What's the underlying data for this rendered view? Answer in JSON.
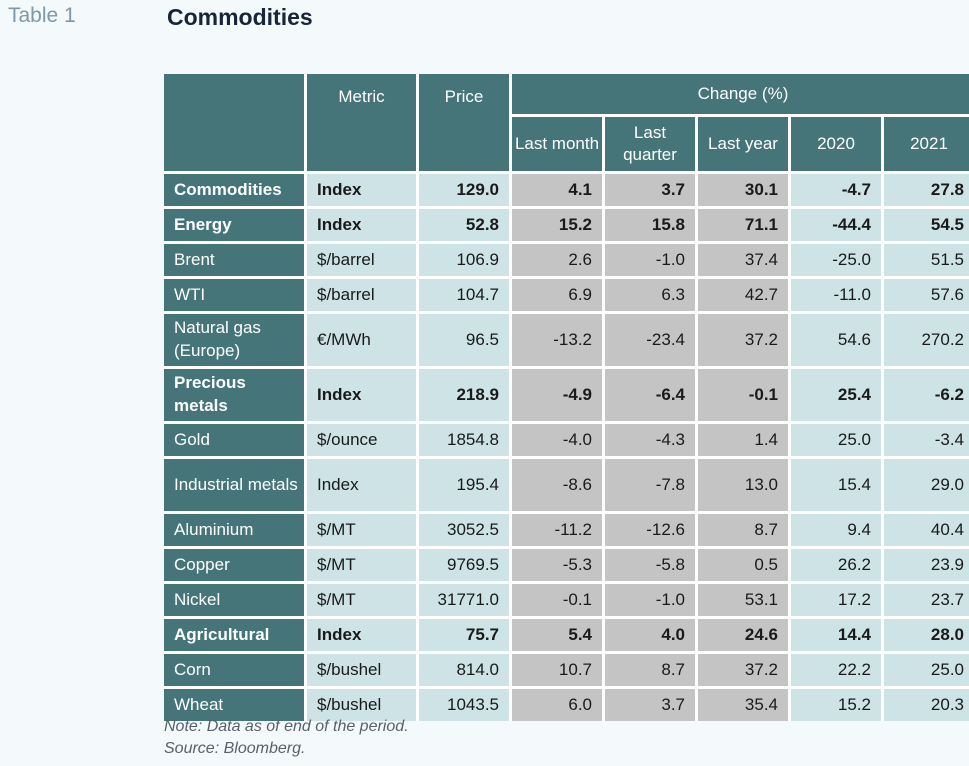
{
  "table_tag": "Table 1",
  "title": "Commodities",
  "headers": {
    "metric": "Metric",
    "price": "Price",
    "change": "Change (%)",
    "sub": [
      "Last month",
      "Last quarter",
      "Last year",
      "2020",
      "2021"
    ]
  },
  "rows": [
    {
      "name": "Commodities",
      "metric": "Index",
      "price": "129.0",
      "values": [
        "4.1",
        "3.7",
        "30.1",
        "-4.7",
        "27.8"
      ],
      "bold": true
    },
    {
      "name": "Energy",
      "metric": "Index",
      "price": "52.8",
      "values": [
        "15.2",
        "15.8",
        "71.1",
        "-44.4",
        "54.5"
      ],
      "bold": true
    },
    {
      "name": "Brent",
      "metric": "$/barrel",
      "price": "106.9",
      "values": [
        "2.6",
        "-1.0",
        "37.4",
        "-25.0",
        "51.5"
      ],
      "bold": false
    },
    {
      "name": "WTI",
      "metric": "$/barrel",
      "price": "104.7",
      "values": [
        "6.9",
        "6.3",
        "42.7",
        "-11.0",
        "57.6"
      ],
      "bold": false
    },
    {
      "name": "Natural gas (Europe)",
      "metric": "€/MWh",
      "price": "96.5",
      "values": [
        "-13.2",
        "-23.4",
        "37.2",
        "54.6",
        "270.2"
      ],
      "bold": false
    },
    {
      "name": "Precious metals",
      "metric": "Index",
      "price": "218.9",
      "values": [
        "-4.9",
        "-6.4",
        "-0.1",
        "25.4",
        "-6.2"
      ],
      "bold": true
    },
    {
      "name": "Gold",
      "metric": "$/ounce",
      "price": "1854.8",
      "values": [
        "-4.0",
        "-4.3",
        "1.4",
        "25.0",
        "-3.4"
      ],
      "bold": false
    },
    {
      "name": "Industrial metals",
      "metric": "Index",
      "price": "195.4",
      "values": [
        "-8.6",
        "-7.8",
        "13.0",
        "15.4",
        "29.0"
      ],
      "bold": false
    },
    {
      "name": "Aluminium",
      "metric": "$/MT",
      "price": "3052.5",
      "values": [
        "-11.2",
        "-12.6",
        "8.7",
        "9.4",
        "40.4"
      ],
      "bold": false
    },
    {
      "name": "Copper",
      "metric": "$/MT",
      "price": "9769.5",
      "values": [
        "-5.3",
        "-5.8",
        "0.5",
        "26.2",
        "23.9"
      ],
      "bold": false
    },
    {
      "name": "Nickel",
      "metric": "$/MT",
      "price": "31771.0",
      "values": [
        "-0.1",
        "-1.0",
        "53.1",
        "17.2",
        "23.7"
      ],
      "bold": false
    },
    {
      "name": "Agricultural",
      "metric": "Index",
      "price": "75.7",
      "values": [
        "5.4",
        "4.0",
        "24.6",
        "14.4",
        "28.0"
      ],
      "bold": true
    },
    {
      "name": "Corn",
      "metric": "$/bushel",
      "price": "814.0",
      "values": [
        "10.7",
        "8.7",
        "37.2",
        "22.2",
        "25.0"
      ],
      "bold": false
    },
    {
      "name": "Wheat",
      "metric": "$/bushel",
      "price": "1043.5",
      "values": [
        "6.0",
        "3.7",
        "35.4",
        "15.2",
        "20.3"
      ],
      "bold": false
    }
  ],
  "note": "Note: Data as of end of the period.",
  "source": "Source: Bloomberg.",
  "colors": {
    "header_bg": "#457479",
    "cell_teal": "#cde3e5",
    "cell_gray": "#c4c4c4",
    "title": "#17243a"
  }
}
